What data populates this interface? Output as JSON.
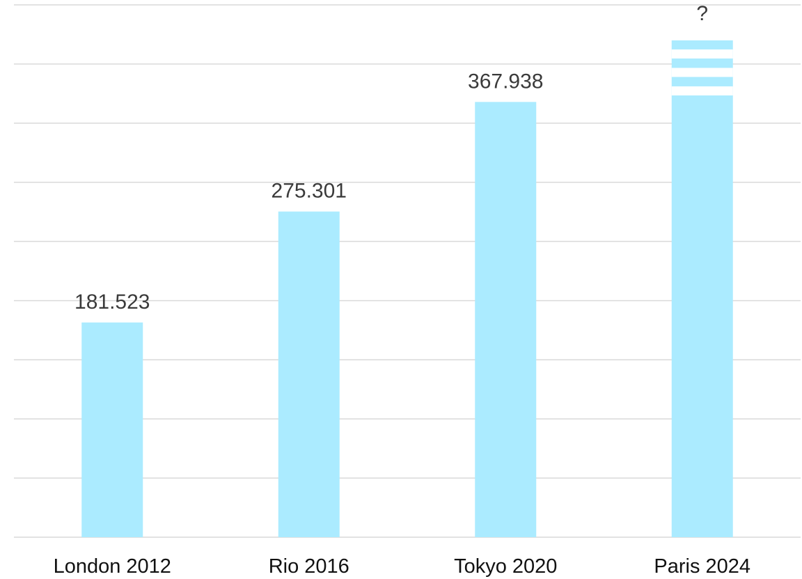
{
  "chart_data": {
    "type": "bar",
    "categories": [
      "London 2012",
      "Rio 2016",
      "Tokyo 2020",
      "Paris 2024"
    ],
    "values": [
      181523,
      275301,
      367938,
      null
    ],
    "data_labels": [
      "181.523",
      "275.301",
      "367.938",
      "?"
    ],
    "unknown_bar_estimate": 420000,
    "ylim": [
      0,
      450000
    ],
    "grid": true,
    "bar_color": "#abebff",
    "gridline_color": "#d9d9d9",
    "label_color": "#3a3a3a",
    "title": "",
    "xlabel": "",
    "ylabel": ""
  }
}
